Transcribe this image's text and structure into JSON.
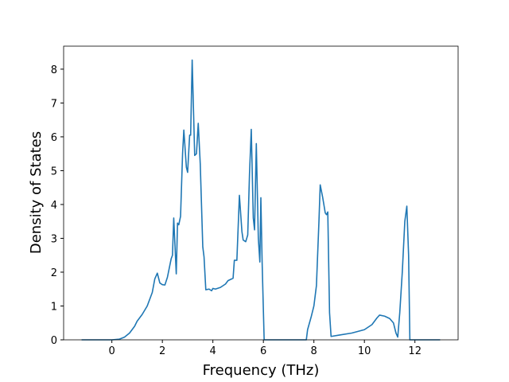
{
  "chart_data": {
    "type": "line",
    "x_label": "Frequency (THz)",
    "y_label": "Density of States",
    "xlim": [
      -1.91,
      13.71
    ],
    "ylim": [
      0,
      8.68
    ],
    "xticks": [
      0,
      2,
      4,
      6,
      8,
      10,
      12
    ],
    "yticks": [
      0,
      1,
      2,
      3,
      4,
      5,
      6,
      7,
      8
    ],
    "series": [
      {
        "color": "#1f77b4",
        "x": [
          -1.2,
          0,
          0.3,
          0.5,
          0.7,
          0.9,
          1.0,
          1.2,
          1.4,
          1.6,
          1.7,
          1.8,
          1.9,
          2.0,
          2.1,
          2.2,
          2.35,
          2.4,
          2.45,
          2.55,
          2.6,
          2.65,
          2.72,
          2.8,
          2.85,
          2.95,
          3.0,
          3.08,
          3.12,
          3.18,
          3.28,
          3.35,
          3.42,
          3.5,
          3.6,
          3.65,
          3.72,
          3.85,
          3.95,
          4.0,
          4.1,
          4.3,
          4.5,
          4.6,
          4.8,
          4.85,
          4.95,
          5.05,
          5.15,
          5.2,
          5.3,
          5.38,
          5.45,
          5.52,
          5.6,
          5.65,
          5.72,
          5.8,
          5.86,
          5.9,
          5.95,
          6.03,
          7.7,
          7.75,
          7.9,
          8.0,
          8.1,
          8.2,
          8.25,
          8.35,
          8.45,
          8.5,
          8.55,
          8.62,
          8.68,
          9.0,
          9.5,
          10.0,
          10.3,
          10.5,
          10.6,
          10.8,
          11.0,
          11.15,
          11.25,
          11.32,
          11.4,
          11.5,
          11.6,
          11.68,
          11.75,
          11.8,
          13.0
        ],
        "values": [
          0,
          0,
          0.02,
          0.08,
          0.2,
          0.4,
          0.55,
          0.75,
          1.0,
          1.4,
          1.8,
          1.97,
          1.68,
          1.63,
          1.62,
          1.85,
          2.4,
          2.5,
          3.6,
          1.95,
          3.45,
          3.4,
          3.65,
          5.5,
          6.2,
          5.1,
          4.95,
          6.05,
          6.05,
          8.27,
          5.45,
          5.5,
          6.4,
          5.2,
          2.75,
          2.45,
          1.48,
          1.5,
          1.45,
          1.52,
          1.5,
          1.55,
          1.65,
          1.75,
          1.82,
          2.35,
          2.35,
          4.27,
          3.2,
          2.95,
          2.9,
          3.1,
          4.9,
          6.22,
          3.6,
          3.25,
          5.8,
          3.0,
          2.3,
          4.2,
          2.3,
          0,
          0,
          0.3,
          0.7,
          1.0,
          1.6,
          3.5,
          4.58,
          4.2,
          3.75,
          3.7,
          3.78,
          0.8,
          0.1,
          0.14,
          0.2,
          0.3,
          0.45,
          0.65,
          0.73,
          0.7,
          0.63,
          0.5,
          0.2,
          0.08,
          0.8,
          2.0,
          3.5,
          3.95,
          2.5,
          0,
          0
        ]
      }
    ]
  }
}
